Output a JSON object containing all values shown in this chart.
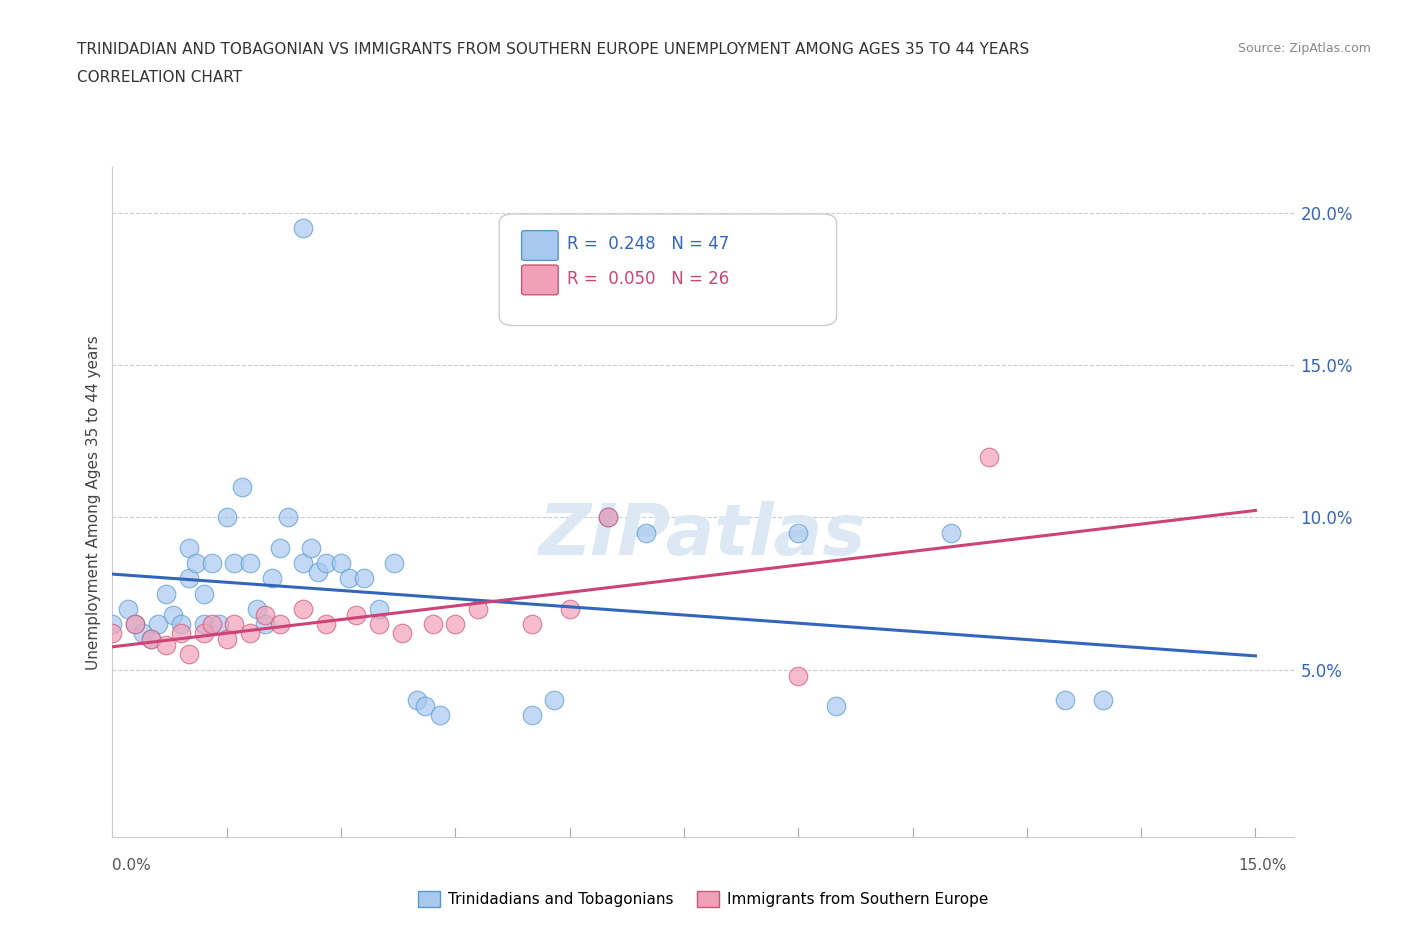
{
  "title_line1": "TRINIDADIAN AND TOBAGONIAN VS IMMIGRANTS FROM SOUTHERN EUROPE UNEMPLOYMENT AMONG AGES 35 TO 44 YEARS",
  "title_line2": "CORRELATION CHART",
  "source": "Source: ZipAtlas.com",
  "ylabel": "Unemployment Among Ages 35 to 44 years",
  "color_blue_fill": "#a8c8f0",
  "color_blue_edge": "#5599cc",
  "color_pink_fill": "#f0a0b8",
  "color_pink_edge": "#cc5577",
  "trendline_blue": "#3366bb",
  "trendline_pink": "#cc4477",
  "xlim": [
    0.0,
    0.155
  ],
  "ylim": [
    -0.005,
    0.215
  ],
  "y_ticks": [
    0.05,
    0.1,
    0.15,
    0.2
  ],
  "y_tick_labels": [
    "5.0%",
    "10.0%",
    "15.0%",
    "20.0%"
  ],
  "grid_color": "#cccccc",
  "watermark_color": "#dde8f5",
  "blue_x": [
    0.0,
    0.002,
    0.003,
    0.004,
    0.005,
    0.006,
    0.007,
    0.008,
    0.009,
    0.01,
    0.01,
    0.011,
    0.012,
    0.012,
    0.013,
    0.014,
    0.015,
    0.016,
    0.017,
    0.018,
    0.019,
    0.02,
    0.021,
    0.022,
    0.023,
    0.025,
    0.026,
    0.027,
    0.028,
    0.03,
    0.031,
    0.033,
    0.035,
    0.037,
    0.04,
    0.041,
    0.043,
    0.055,
    0.058,
    0.065,
    0.07,
    0.09,
    0.095,
    0.11,
    0.125,
    0.13,
    0.025
  ],
  "blue_y": [
    0.065,
    0.07,
    0.065,
    0.062,
    0.06,
    0.065,
    0.075,
    0.068,
    0.065,
    0.09,
    0.08,
    0.085,
    0.075,
    0.065,
    0.085,
    0.065,
    0.1,
    0.085,
    0.11,
    0.085,
    0.07,
    0.065,
    0.08,
    0.09,
    0.1,
    0.085,
    0.09,
    0.082,
    0.085,
    0.085,
    0.08,
    0.08,
    0.07,
    0.085,
    0.04,
    0.038,
    0.035,
    0.035,
    0.04,
    0.1,
    0.095,
    0.095,
    0.038,
    0.095,
    0.04,
    0.04,
    0.195
  ],
  "pink_x": [
    0.0,
    0.003,
    0.005,
    0.007,
    0.009,
    0.01,
    0.012,
    0.013,
    0.015,
    0.016,
    0.018,
    0.02,
    0.022,
    0.025,
    0.028,
    0.032,
    0.035,
    0.038,
    0.042,
    0.045,
    0.048,
    0.055,
    0.06,
    0.065,
    0.09,
    0.115
  ],
  "pink_y": [
    0.062,
    0.065,
    0.06,
    0.058,
    0.062,
    0.055,
    0.062,
    0.065,
    0.06,
    0.065,
    0.062,
    0.068,
    0.065,
    0.07,
    0.065,
    0.068,
    0.065,
    0.062,
    0.065,
    0.065,
    0.07,
    0.065,
    0.07,
    0.1,
    0.048,
    0.12
  ]
}
